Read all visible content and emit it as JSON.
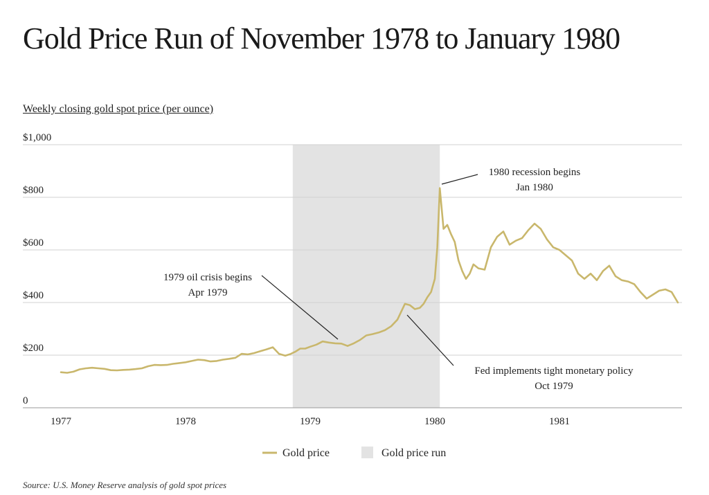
{
  "title": "Gold Price Run of November 1978 to January 1980",
  "subtitle": "Weekly closing gold spot price (per ounce)",
  "source": "Source: U.S. Money Reserve analysis of gold spot prices",
  "colors": {
    "line": "#c9b76c",
    "shade": "#e3e3e3",
    "grid": "#d0d0d0",
    "axis": "#9a9a9a",
    "text": "#222222"
  },
  "chart_data": {
    "type": "line",
    "ylim": [
      0,
      1000
    ],
    "xlim": [
      1977.0,
      1981.95
    ],
    "y_ticks": [
      {
        "value": 0,
        "label": "0"
      },
      {
        "value": 200,
        "label": "$200"
      },
      {
        "value": 400,
        "label": "$400"
      },
      {
        "value": 600,
        "label": "$600"
      },
      {
        "value": 800,
        "label": "$800"
      },
      {
        "value": 1000,
        "label": "$1,000"
      }
    ],
    "x_ticks": [
      {
        "value": 1977,
        "label": "1977"
      },
      {
        "value": 1978,
        "label": "1978"
      },
      {
        "value": 1979,
        "label": "1979"
      },
      {
        "value": 1980,
        "label": "1980"
      },
      {
        "value": 1981,
        "label": "1981"
      }
    ],
    "grid": true,
    "legend_position": "bottom",
    "shaded_region": {
      "name": "Gold price run",
      "start": 1978.86,
      "end": 1980.04
    },
    "series": [
      {
        "name": "Gold price",
        "x": [
          1977.0,
          1977.05,
          1977.1,
          1977.15,
          1977.2,
          1977.25,
          1977.3,
          1977.35,
          1977.4,
          1977.45,
          1977.5,
          1977.55,
          1977.6,
          1977.65,
          1977.7,
          1977.75,
          1977.8,
          1977.85,
          1977.9,
          1977.95,
          1978.0,
          1978.05,
          1978.1,
          1978.15,
          1978.2,
          1978.25,
          1978.3,
          1978.35,
          1978.4,
          1978.45,
          1978.5,
          1978.55,
          1978.6,
          1978.65,
          1978.7,
          1978.75,
          1978.8,
          1978.84,
          1978.88,
          1978.92,
          1978.96,
          1979.0,
          1979.05,
          1979.1,
          1979.15,
          1979.2,
          1979.25,
          1979.3,
          1979.35,
          1979.4,
          1979.45,
          1979.5,
          1979.55,
          1979.6,
          1979.65,
          1979.7,
          1979.73,
          1979.76,
          1979.8,
          1979.84,
          1979.88,
          1979.91,
          1979.94,
          1979.97,
          1980.0,
          1980.02,
          1980.04,
          1980.07,
          1980.1,
          1980.13,
          1980.16,
          1980.19,
          1980.22,
          1980.25,
          1980.28,
          1980.31,
          1980.35,
          1980.4,
          1980.45,
          1980.5,
          1980.55,
          1980.6,
          1980.65,
          1980.7,
          1980.75,
          1980.8,
          1980.85,
          1980.9,
          1980.95,
          1981.0,
          1981.05,
          1981.1,
          1981.15,
          1981.2,
          1981.25,
          1981.3,
          1981.35,
          1981.4,
          1981.45,
          1981.5,
          1981.55,
          1981.6,
          1981.65,
          1981.7,
          1981.75,
          1981.8,
          1981.85,
          1981.9,
          1981.95
        ],
        "values": [
          135,
          133,
          137,
          146,
          150,
          152,
          150,
          148,
          143,
          142,
          144,
          145,
          147,
          150,
          158,
          163,
          162,
          163,
          167,
          170,
          173,
          178,
          183,
          181,
          176,
          178,
          183,
          186,
          190,
          205,
          203,
          208,
          215,
          222,
          230,
          205,
          198,
          204,
          213,
          225,
          225,
          232,
          240,
          252,
          248,
          245,
          244,
          235,
          245,
          258,
          275,
          280,
          286,
          295,
          310,
          335,
          365,
          395,
          390,
          375,
          380,
          395,
          420,
          440,
          490,
          610,
          835,
          680,
          695,
          660,
          630,
          560,
          520,
          490,
          510,
          545,
          530,
          525,
          610,
          650,
          670,
          620,
          635,
          645,
          675,
          700,
          680,
          640,
          610,
          600,
          580,
          560,
          510,
          490,
          510,
          485,
          520,
          540,
          500,
          485,
          480,
          470,
          440,
          415,
          430,
          445,
          450,
          440,
          400
        ]
      }
    ],
    "annotations": [
      {
        "lines": [
          "1980 recession begins",
          "Jan 1980"
        ],
        "x": 1980.03,
        "y": 835
      },
      {
        "lines": [
          "1979 oil crisis begins",
          "Apr 1979"
        ],
        "x": 1979.25,
        "y": 250
      },
      {
        "lines": [
          "Fed implements tight monetary policy",
          "Oct 1979"
        ],
        "x": 1979.78,
        "y": 355
      }
    ]
  }
}
